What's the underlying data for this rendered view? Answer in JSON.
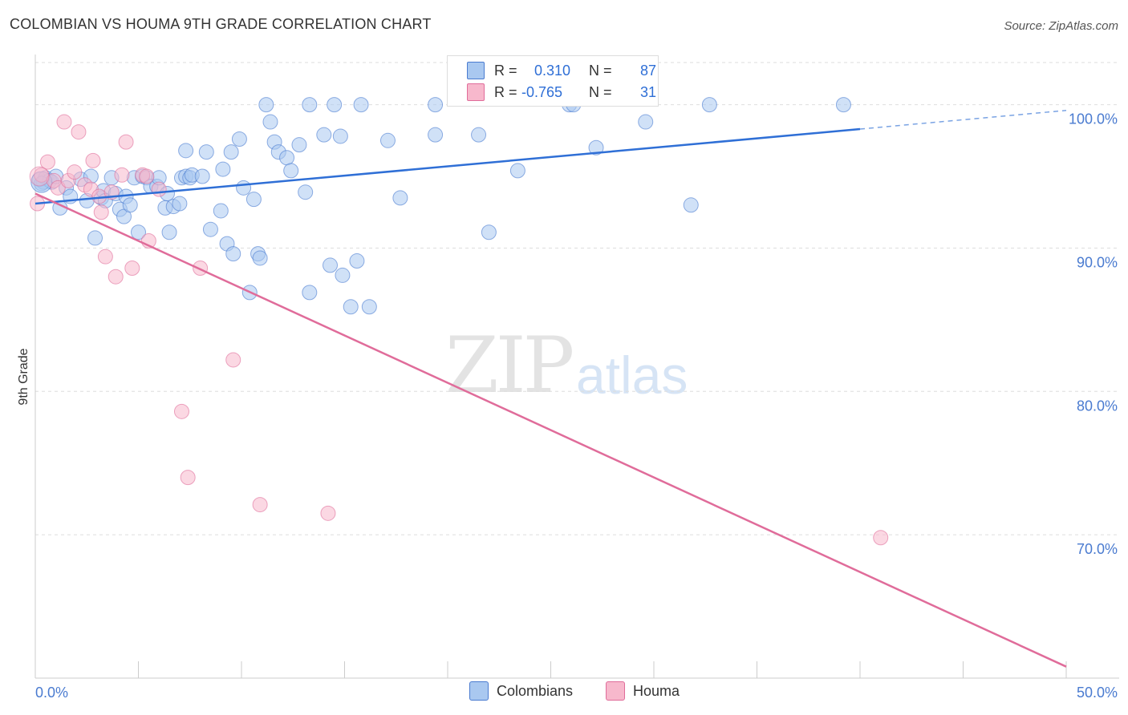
{
  "title": "COLOMBIAN VS HOUMA 9TH GRADE CORRELATION CHART",
  "source": "Source: ZipAtlas.com",
  "watermark": {
    "zip": "ZIP",
    "atlas": "atlas"
  },
  "stats": [
    {
      "r_label": "R =",
      "r_value": "0.310",
      "n_label": "N =",
      "n_value": "87",
      "color": "#a9c8f0"
    },
    {
      "r_label": "R =",
      "r_value": "-0.765",
      "n_label": "N =",
      "n_value": "31",
      "color": "#f7b8cc"
    }
  ],
  "legend": [
    {
      "label": "Colombians",
      "color": "#a9c8f0"
    },
    {
      "label": "Houma",
      "color": "#f7b8cc"
    }
  ],
  "chart_data": {
    "type": "scatter",
    "title": "COLOMBIAN VS HOUMA 9TH GRADE CORRELATION CHART",
    "xlabel": "",
    "ylabel": "9th Grade",
    "xlim": [
      0,
      50
    ],
    "ylim": [
      60,
      103.5
    ],
    "x_tick_labels": [
      "0.0%",
      "50.0%"
    ],
    "y_ticks": [
      100,
      90,
      80,
      70
    ],
    "y_tick_labels": [
      "100.0%",
      "90.0%",
      "80.0%",
      "70.0%"
    ],
    "grid": true,
    "series": [
      {
        "name": "Colombians",
        "color": "#4a7bd0",
        "fill": "#a9c8f0",
        "trend": {
          "x": [
            0,
            40,
            50
          ],
          "y": [
            93.1,
            98.3,
            99.6
          ],
          "solid_until": 40
        },
        "points": [
          [
            0.2,
            94.8
          ],
          [
            0.4,
            94.6
          ],
          [
            0.5,
            94.9
          ],
          [
            0.7,
            94.7
          ],
          [
            0.8,
            94.6
          ],
          [
            1.0,
            95.0
          ],
          [
            1.2,
            92.8
          ],
          [
            1.5,
            94.2
          ],
          [
            1.7,
            93.6
          ],
          [
            2.2,
            94.8
          ],
          [
            2.5,
            93.3
          ],
          [
            2.7,
            95.0
          ],
          [
            2.9,
            90.7
          ],
          [
            3.2,
            93.5
          ],
          [
            3.3,
            94.0
          ],
          [
            3.4,
            93.3
          ],
          [
            3.7,
            94.9
          ],
          [
            3.9,
            93.8
          ],
          [
            4.1,
            92.7
          ],
          [
            4.3,
            92.2
          ],
          [
            4.4,
            93.6
          ],
          [
            4.6,
            93.0
          ],
          [
            4.8,
            94.9
          ],
          [
            5.0,
            91.1
          ],
          [
            5.2,
            95.0
          ],
          [
            5.4,
            94.9
          ],
          [
            5.6,
            94.3
          ],
          [
            5.9,
            94.3
          ],
          [
            6.0,
            94.9
          ],
          [
            6.3,
            92.8
          ],
          [
            6.4,
            93.8
          ],
          [
            6.5,
            91.1
          ],
          [
            6.7,
            92.9
          ],
          [
            7.0,
            93.1
          ],
          [
            7.1,
            94.9
          ],
          [
            7.3,
            95.0
          ],
          [
            7.5,
            94.9
          ],
          [
            7.6,
            95.1
          ],
          [
            8.1,
            95.0
          ],
          [
            7.3,
            96.8
          ],
          [
            8.3,
            96.7
          ],
          [
            8.5,
            91.3
          ],
          [
            9.0,
            92.6
          ],
          [
            9.1,
            95.5
          ],
          [
            9.3,
            90.3
          ],
          [
            9.5,
            96.7
          ],
          [
            9.6,
            89.6
          ],
          [
            9.9,
            97.6
          ],
          [
            10.1,
            94.2
          ],
          [
            10.4,
            86.9
          ],
          [
            10.6,
            93.4
          ],
          [
            10.8,
            89.6
          ],
          [
            10.9,
            89.3
          ],
          [
            11.2,
            100.0
          ],
          [
            11.4,
            98.8
          ],
          [
            11.6,
            97.4
          ],
          [
            11.8,
            96.7
          ],
          [
            12.2,
            96.3
          ],
          [
            12.4,
            95.4
          ],
          [
            12.8,
            97.2
          ],
          [
            13.1,
            93.9
          ],
          [
            13.3,
            86.9
          ],
          [
            13.3,
            100.0
          ],
          [
            14.0,
            97.9
          ],
          [
            14.3,
            88.8
          ],
          [
            14.5,
            100.0
          ],
          [
            14.8,
            97.8
          ],
          [
            14.9,
            88.1
          ],
          [
            15.3,
            85.9
          ],
          [
            15.6,
            89.1
          ],
          [
            15.8,
            100.0
          ],
          [
            16.2,
            85.9
          ],
          [
            17.1,
            97.5
          ],
          [
            17.7,
            93.5
          ],
          [
            19.4,
            100.0
          ],
          [
            19.4,
            97.9
          ],
          [
            21.5,
            97.9
          ],
          [
            22.0,
            91.1
          ],
          [
            23.4,
            95.4
          ],
          [
            25.9,
            100.0
          ],
          [
            26.1,
            100.0
          ],
          [
            27.2,
            97.0
          ],
          [
            29.6,
            98.8
          ],
          [
            31.8,
            93.0
          ],
          [
            32.7,
            100.0
          ],
          [
            39.2,
            100.0
          ],
          [
            0.3,
            94.5
          ]
        ]
      },
      {
        "name": "Houma",
        "color": "#e06c9a",
        "fill": "#f7b8cc",
        "trend": {
          "x": [
            0,
            50
          ],
          "y": [
            93.8,
            60.8
          ]
        },
        "points": [
          [
            0.1,
            93.1
          ],
          [
            0.3,
            95.1
          ],
          [
            0.6,
            96.0
          ],
          [
            0.9,
            94.7
          ],
          [
            1.1,
            94.2
          ],
          [
            1.4,
            98.8
          ],
          [
            1.6,
            94.7
          ],
          [
            1.9,
            95.3
          ],
          [
            2.1,
            98.1
          ],
          [
            2.4,
            94.4
          ],
          [
            2.7,
            94.1
          ],
          [
            2.8,
            96.1
          ],
          [
            3.1,
            93.6
          ],
          [
            3.2,
            92.5
          ],
          [
            3.4,
            89.4
          ],
          [
            3.7,
            93.9
          ],
          [
            3.9,
            88.0
          ],
          [
            4.2,
            95.1
          ],
          [
            4.4,
            97.4
          ],
          [
            4.7,
            88.6
          ],
          [
            5.2,
            95.1
          ],
          [
            5.4,
            95.0
          ],
          [
            5.5,
            90.5
          ],
          [
            6.0,
            94.1
          ],
          [
            7.1,
            78.6
          ],
          [
            7.4,
            74.0
          ],
          [
            8.0,
            88.6
          ],
          [
            9.6,
            82.2
          ],
          [
            10.9,
            72.1
          ],
          [
            14.2,
            71.5
          ],
          [
            41.0,
            69.8
          ]
        ]
      }
    ]
  }
}
